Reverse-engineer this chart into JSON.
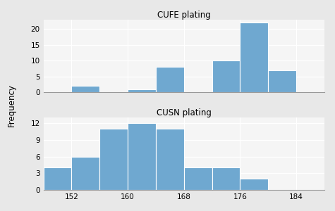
{
  "cufe_counts": [
    0,
    2,
    0,
    1,
    8,
    0,
    10,
    22,
    7,
    0
  ],
  "cusn_counts": [
    4,
    6,
    11,
    12,
    11,
    4,
    4,
    2,
    0,
    0
  ],
  "bin_edges": [
    148,
    152,
    156,
    160,
    164,
    168,
    172,
    176,
    180,
    184,
    188
  ],
  "bar_color": "#6fa8d0",
  "bar_edge_color": "#ffffff",
  "cufe_title": "CUFE plating",
  "cusn_title": "CUSN plating",
  "ylabel": "Frequency",
  "cufe_yticks": [
    0,
    5,
    10,
    15,
    20
  ],
  "cufe_ylim": [
    0,
    23
  ],
  "cusn_yticks": [
    0,
    3,
    6,
    9,
    12
  ],
  "cusn_ylim": [
    0,
    13
  ],
  "xticks": [
    152,
    160,
    168,
    176,
    184
  ],
  "xlim": [
    148,
    188
  ],
  "bg_color": "#e8e8e8",
  "plot_bg_color": "#f5f5f5",
  "grid_color": "#ffffff",
  "title_fontsize": 8.5,
  "tick_fontsize": 7.5,
  "label_fontsize": 8.5
}
